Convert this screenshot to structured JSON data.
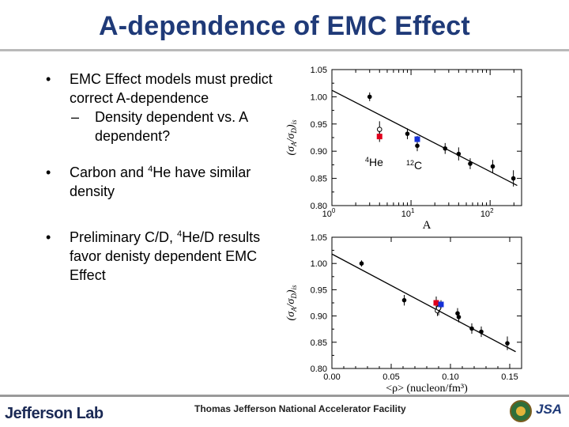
{
  "title": "A-dependence of EMC Effect",
  "bullets": {
    "b1": "EMC Effect models must predict correct A-dependence",
    "b1_sub": "Density dependent vs. A dependent?",
    "b2_pre": "Carbon and ",
    "b2_sup": "4",
    "b2_post": "He have similar density",
    "b3_pre": "Preliminary C/D, ",
    "b3_sup": "4",
    "b3_post": "He/D results favor denisty dependent EMC Effect"
  },
  "footer": {
    "lab": "Jefferson Lab",
    "facility": "Thomas Jefferson National Accelerator Facility",
    "logo_text": "JSA"
  },
  "colors": {
    "title": "#1f3a78",
    "red": "#e0001b",
    "blue": "#1430d8"
  },
  "chart_data": [
    {
      "type": "scatter",
      "xscale": "log",
      "xlabel": "A",
      "ylabel": "(σA/σD)is",
      "xlim": [
        1,
        250
      ],
      "ylim": [
        0.8,
        1.05
      ],
      "xticks_labels": [
        "10^0",
        "10^1",
        "10^2"
      ],
      "yticks": [
        "0.80",
        "0.85",
        "0.90",
        "0.95",
        "1.00",
        "1.05"
      ],
      "annotations": [
        {
          "sup": "4",
          "text": "He"
        },
        {
          "sup": "12",
          "text": "C"
        }
      ],
      "series": [
        {
          "values": [
            {
              "x": 3,
              "y": 1.0,
              "err": 0.008
            },
            {
              "x": 9,
              "y": 0.932,
              "err": 0.01
            },
            {
              "x": 12,
              "y": 0.91,
              "err": 0.01
            },
            {
              "x": 27,
              "y": 0.905,
              "err": 0.01
            },
            {
              "x": 40,
              "y": 0.895,
              "err": 0.012
            },
            {
              "x": 56,
              "y": 0.877,
              "err": 0.01
            },
            {
              "x": 108,
              "y": 0.872,
              "err": 0.012
            },
            {
              "x": 197,
              "y": 0.85,
              "err": 0.015
            }
          ]
        },
        {
          "marker": "open",
          "values": [
            {
              "x": 4,
              "y": 0.94,
              "err": 0.015
            }
          ]
        },
        {
          "color": "#e0001b",
          "values": [
            {
              "x": 4,
              "y": 0.927,
              "err": 0.01
            }
          ]
        },
        {
          "color": "#1430d8",
          "values": [
            {
              "x": 12,
              "y": 0.922,
              "err": 0.006
            }
          ]
        }
      ],
      "fit_line": [
        {
          "x": 1,
          "y": 1.012
        },
        {
          "x": 220,
          "y": 0.837
        }
      ]
    },
    {
      "type": "scatter",
      "xlabel": "<ρ> (nucleon/fm³)",
      "ylabel": "(σA/σD)is",
      "xlim": [
        0.0,
        0.16
      ],
      "ylim": [
        0.8,
        1.05
      ],
      "xticks": [
        "0.00",
        "0.05",
        "0.10",
        "0.15"
      ],
      "yticks": [
        "0.80",
        "0.85",
        "0.90",
        "0.95",
        "1.00",
        "1.05"
      ],
      "series": [
        {
          "values": [
            {
              "x": 0.025,
              "y": 1.0,
              "err": 0.006
            },
            {
              "x": 0.061,
              "y": 0.93,
              "err": 0.01
            },
            {
              "x": 0.106,
              "y": 0.905,
              "err": 0.01
            },
            {
              "x": 0.107,
              "y": 0.898,
              "err": 0.01
            },
            {
              "x": 0.118,
              "y": 0.876,
              "err": 0.01
            },
            {
              "x": 0.126,
              "y": 0.87,
              "err": 0.01
            },
            {
              "x": 0.148,
              "y": 0.848,
              "err": 0.013
            }
          ]
        },
        {
          "marker": "open",
          "values": [
            {
              "x": 0.089,
              "y": 0.91,
              "err": 0.01
            },
            {
              "x": 0.09,
              "y": 0.915,
              "err": 0.014
            }
          ]
        },
        {
          "color": "#e0001b",
          "values": [
            {
              "x": 0.088,
              "y": 0.925,
              "err": 0.012
            }
          ]
        },
        {
          "color": "#1430d8",
          "values": [
            {
              "x": 0.092,
              "y": 0.922,
              "err": 0.008
            }
          ]
        }
      ],
      "fit_line": [
        {
          "x": 0.0,
          "y": 1.018
        },
        {
          "x": 0.155,
          "y": 0.832
        }
      ]
    }
  ]
}
